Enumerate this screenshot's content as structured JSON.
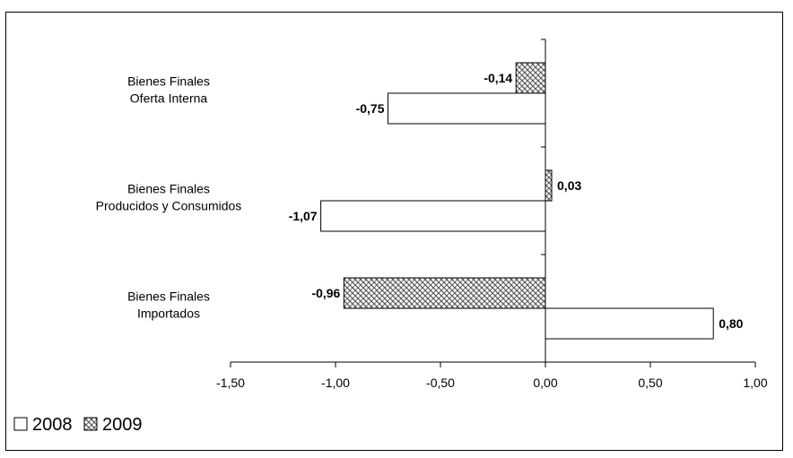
{
  "chart_data": {
    "type": "bar",
    "orientation": "horizontal",
    "categories": [
      [
        "Bienes Finales",
        "Oferta Interna"
      ],
      [
        "Bienes Finales",
        "Producidos y Consumidos"
      ],
      [
        "Bienes Finales",
        "Importados"
      ]
    ],
    "series": [
      {
        "name": "2008",
        "values": [
          -0.75,
          -1.07,
          0.8
        ],
        "labels": [
          "-0,75",
          "-1,07",
          "0,80"
        ],
        "fill": "#ffffff"
      },
      {
        "name": "2009",
        "values": [
          -0.14,
          0.03,
          -0.96
        ],
        "labels": [
          "-0,14",
          "0,03",
          "-0,96"
        ],
        "fill": "hatched"
      }
    ],
    "xlim": [
      -1.5,
      1.0
    ],
    "xticks": [
      -1.5,
      -1.0,
      -0.5,
      0.0,
      0.5,
      1.0
    ],
    "xtick_labels": [
      "-1,50",
      "-1,00",
      "-0,50",
      "0,00",
      "0,50",
      "1,00"
    ],
    "title": "",
    "xlabel": "",
    "ylabel": "",
    "grid": false,
    "legend_position": "bottom-left"
  }
}
